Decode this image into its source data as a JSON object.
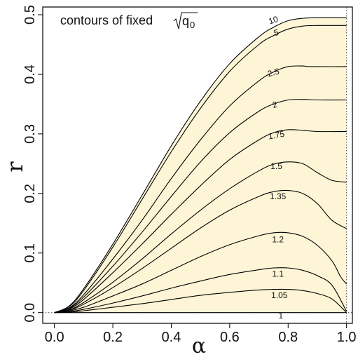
{
  "chart_data": {
    "type": "line",
    "title": "contours of fixed",
    "title_math": "q",
    "title_math_sub": "0",
    "xlabel": "α",
    "ylabel": "r",
    "xlim": [
      -0.04,
      1.02
    ],
    "ylim": [
      -0.018,
      0.513
    ],
    "x_ticks": [
      "0.0",
      "0.2",
      "0.4",
      "0.6",
      "0.8",
      "1.0"
    ],
    "y_ticks": [
      "0.0",
      "0.1",
      "0.2",
      "0.3",
      "0.4",
      "0.5"
    ],
    "fill_color": "#fdf5d6",
    "line_color": "#000000",
    "reference_lines": {
      "x": 1.0,
      "y": 0.0,
      "style": "dotted"
    },
    "series": [
      {
        "name": "10",
        "label": "10",
        "x": [
          0,
          0.05,
          0.1,
          0.2,
          0.3,
          0.4,
          0.5,
          0.6,
          0.7,
          0.75,
          0.8,
          0.85,
          0.9,
          1.0
        ],
        "y": [
          0,
          0.011,
          0.04,
          0.115,
          0.197,
          0.28,
          0.355,
          0.418,
          0.463,
          0.479,
          0.49,
          0.494,
          0.495,
          0.495
        ]
      },
      {
        "name": "5",
        "label": "5",
        "x": [
          0,
          0.05,
          0.1,
          0.2,
          0.3,
          0.4,
          0.5,
          0.6,
          0.7,
          0.75,
          0.8,
          0.85,
          0.9,
          1.0
        ],
        "y": [
          0,
          0.01,
          0.037,
          0.11,
          0.19,
          0.27,
          0.343,
          0.405,
          0.45,
          0.465,
          0.476,
          0.481,
          0.482,
          0.482
        ]
      },
      {
        "name": "2.5",
        "label": "2.5",
        "x": [
          0,
          0.05,
          0.1,
          0.2,
          0.3,
          0.4,
          0.5,
          0.6,
          0.7,
          0.75,
          0.8,
          0.85,
          0.88,
          1.0
        ],
        "y": [
          0,
          0.008,
          0.03,
          0.09,
          0.155,
          0.225,
          0.29,
          0.347,
          0.389,
          0.404,
          0.413,
          0.414,
          0.413,
          0.413
        ]
      },
      {
        "name": "2",
        "label": "2",
        "x": [
          0,
          0.05,
          0.1,
          0.2,
          0.3,
          0.4,
          0.5,
          0.6,
          0.7,
          0.75,
          0.8,
          0.85,
          0.9,
          1.0
        ],
        "y": [
          0,
          0.007,
          0.026,
          0.078,
          0.135,
          0.195,
          0.253,
          0.302,
          0.338,
          0.35,
          0.357,
          0.358,
          0.357,
          0.357
        ]
      },
      {
        "name": "1.75",
        "label": "1.75",
        "x": [
          0,
          0.05,
          0.1,
          0.2,
          0.3,
          0.4,
          0.5,
          0.6,
          0.7,
          0.75,
          0.8,
          0.85,
          0.9,
          1.0
        ],
        "y": [
          0,
          0.006,
          0.022,
          0.067,
          0.115,
          0.165,
          0.213,
          0.257,
          0.29,
          0.302,
          0.307,
          0.306,
          0.304,
          0.304
        ]
      },
      {
        "name": "1.5",
        "label": "1.5",
        "x": [
          0,
          0.05,
          0.1,
          0.2,
          0.3,
          0.4,
          0.5,
          0.6,
          0.7,
          0.75,
          0.8,
          0.85,
          0.9,
          0.95,
          1.0
        ],
        "y": [
          0,
          0.0045,
          0.017,
          0.051,
          0.09,
          0.132,
          0.172,
          0.208,
          0.238,
          0.249,
          0.253,
          0.25,
          0.235,
          0.222,
          0.219
        ]
      },
      {
        "name": "1.35",
        "label": "1.35",
        "x": [
          0,
          0.05,
          0.1,
          0.2,
          0.3,
          0.4,
          0.5,
          0.6,
          0.7,
          0.75,
          0.8,
          0.85,
          0.9,
          0.95,
          1.0
        ],
        "y": [
          0,
          0.0038,
          0.014,
          0.042,
          0.074,
          0.108,
          0.142,
          0.172,
          0.195,
          0.203,
          0.205,
          0.2,
          0.183,
          0.155,
          0.141
        ]
      },
      {
        "name": "1.2",
        "label": "1.2",
        "x": [
          0,
          0.05,
          0.1,
          0.2,
          0.3,
          0.4,
          0.5,
          0.6,
          0.7,
          0.75,
          0.8,
          0.85,
          0.9,
          0.95,
          0.98,
          1.0
        ],
        "y": [
          0,
          0.0026,
          0.009,
          0.028,
          0.048,
          0.071,
          0.094,
          0.114,
          0.129,
          0.134,
          0.134,
          0.128,
          0.113,
          0.087,
          0.06,
          0.048
        ]
      },
      {
        "name": "1.1",
        "label": "1.1",
        "x": [
          0,
          0.05,
          0.1,
          0.2,
          0.3,
          0.4,
          0.5,
          0.6,
          0.7,
          0.75,
          0.8,
          0.85,
          0.9,
          0.95,
          1.0
        ],
        "y": [
          0,
          0.0015,
          0.0055,
          0.016,
          0.028,
          0.041,
          0.053,
          0.064,
          0.072,
          0.075,
          0.075,
          0.071,
          0.062,
          0.046,
          0.002
        ]
      },
      {
        "name": "1.05",
        "label": "1.05",
        "x": [
          0,
          0.05,
          0.1,
          0.2,
          0.3,
          0.4,
          0.5,
          0.6,
          0.7,
          0.75,
          0.8,
          0.85,
          0.9,
          0.95,
          1.0
        ],
        "y": [
          0,
          0.0008,
          0.003,
          0.009,
          0.015,
          0.022,
          0.029,
          0.034,
          0.038,
          0.039,
          0.039,
          0.037,
          0.032,
          0.023,
          0.0
        ]
      },
      {
        "name": "1",
        "label": "1",
        "x": [
          0,
          1.0
        ],
        "y": [
          0,
          0
        ]
      }
    ],
    "label_positions": [
      {
        "series": "10",
        "x": 0.75,
        "y": 0.49,
        "angle": -18
      },
      {
        "series": "5",
        "x": 0.76,
        "y": 0.469,
        "angle": -15
      },
      {
        "series": "2.5",
        "x": 0.75,
        "y": 0.402,
        "angle": -15
      },
      {
        "series": "2",
        "x": 0.755,
        "y": 0.348,
        "angle": -15
      },
      {
        "series": "1.75",
        "x": 0.76,
        "y": 0.297,
        "angle": -10
      },
      {
        "series": "1.5",
        "x": 0.76,
        "y": 0.245,
        "angle": 0
      },
      {
        "series": "1.35",
        "x": 0.765,
        "y": 0.194,
        "angle": 0
      },
      {
        "series": "1.2",
        "x": 0.765,
        "y": 0.122,
        "angle": 0
      },
      {
        "series": "1.1",
        "x": 0.765,
        "y": 0.064,
        "angle": 0
      },
      {
        "series": "1.05",
        "x": 0.77,
        "y": 0.028,
        "angle": 0
      },
      {
        "series": "1",
        "x": 0.775,
        "y": -0.006,
        "angle": 0
      }
    ]
  }
}
